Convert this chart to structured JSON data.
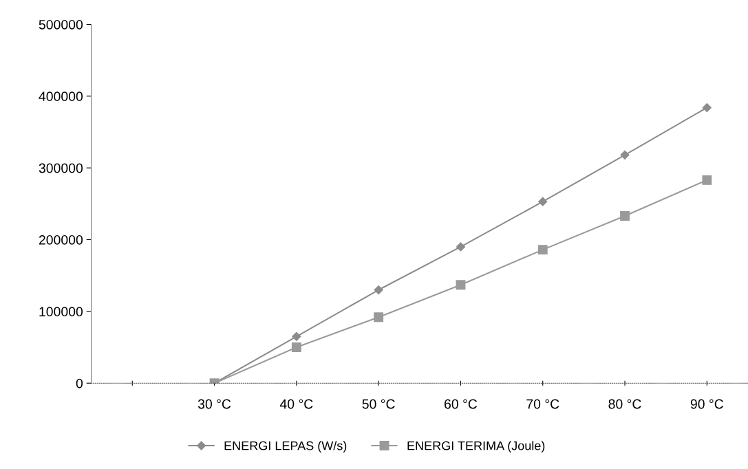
{
  "chart_data": {
    "type": "line",
    "categories": [
      null,
      "30 °C",
      "40 °C",
      "50 °C",
      "60 °C",
      "70 °C",
      "80 °C",
      "90 °C"
    ],
    "series": [
      {
        "name": "ENERGI LEPAS (W/s)",
        "color": "#8c8c8c",
        "marker": "diamond",
        "values": [
          null,
          0,
          65000,
          130000,
          190000,
          253000,
          318000,
          384000
        ]
      },
      {
        "name": "ENERGI TERIMA (Joule)",
        "color": "#9a9a9a",
        "marker": "square",
        "values": [
          null,
          0,
          50000,
          92000,
          137000,
          186000,
          233000,
          283000
        ]
      }
    ],
    "ylim": [
      0,
      500000
    ],
    "yticks": [
      0,
      100000,
      200000,
      300000,
      400000,
      500000
    ],
    "grid": false,
    "legend": "bottom",
    "line_style": "solid"
  }
}
